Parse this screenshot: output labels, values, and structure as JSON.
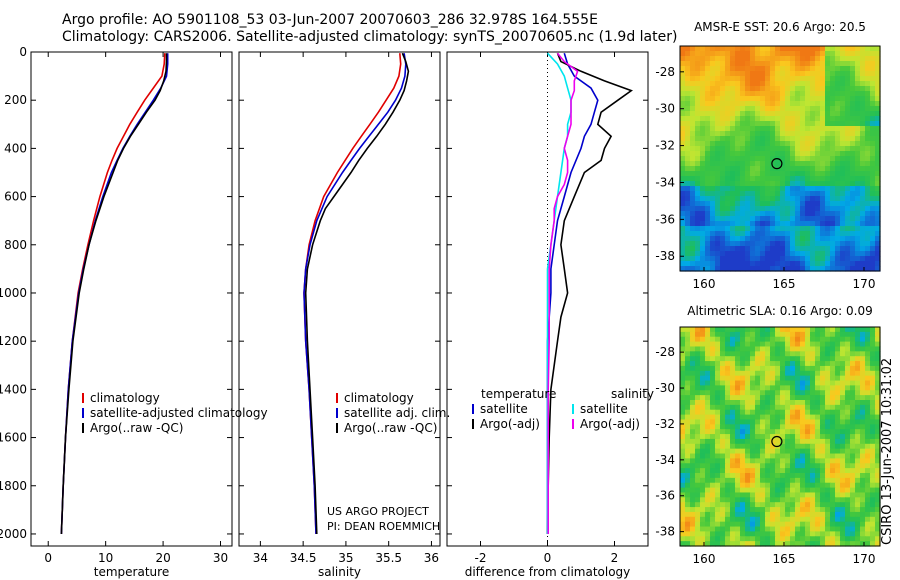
{
  "header": {
    "line1": "Argo profile: AO 5901108_53 03-Jun-2007 20070603_286 32.978S 164.555E",
    "line2": "Climatology: CARS2006. Satellite-adjusted climatology: synTS_20070605.nc (1.9d later)"
  },
  "footer_credit": {
    "line1": "US ARGO PROJECT",
    "line2": "PI: DEAN ROEMMICH"
  },
  "side_label": "CSIRO 13-Jun-2007 10:31:02",
  "colors": {
    "climatology": "#e00000",
    "satellite": "#0000cc",
    "argo": "#000000",
    "temp_diff": "#00e5ee",
    "sal_diff": "#ee00ee"
  },
  "chart_data": [
    {
      "type": "line",
      "id": "temperature",
      "xlabel": "temperature",
      "ylabel": "",
      "xlim": [
        -3,
        32
      ],
      "ylim": [
        2050,
        0
      ],
      "xticks": [
        0,
        10,
        20,
        30
      ],
      "yticks": [
        0,
        200,
        400,
        600,
        800,
        1000,
        1200,
        1400,
        1600,
        1800,
        2000
      ],
      "legend": {
        "position": "lower-right",
        "entries": [
          "climatology",
          "satellite-adjusted climatology",
          "Argo(..raw -QC)"
        ]
      },
      "series": [
        {
          "name": "climatology",
          "depth": [
            5,
            50,
            100,
            150,
            200,
            250,
            300,
            350,
            400,
            450,
            500,
            600,
            700,
            800,
            900,
            1000,
            1200,
            1400,
            1600,
            1800,
            2000
          ],
          "values": [
            20.3,
            20.2,
            19.8,
            18.3,
            16.8,
            15.5,
            14.2,
            13.1,
            12.0,
            11.1,
            10.3,
            9.0,
            7.9,
            6.9,
            6.0,
            5.2,
            4.2,
            3.5,
            3.0,
            2.6,
            2.3
          ]
        },
        {
          "name": "satellite-adjusted climatology",
          "depth": [
            5,
            50,
            100,
            150,
            200,
            250,
            300,
            350,
            400,
            450,
            500,
            600,
            700,
            800,
            900,
            1000,
            1200,
            1400,
            1600,
            1800,
            2000
          ],
          "values": [
            20.8,
            20.8,
            20.6,
            19.6,
            18.3,
            16.9,
            15.5,
            14.2,
            13.0,
            12.0,
            11.0,
            9.5,
            8.2,
            7.1,
            6.1,
            5.3,
            4.2,
            3.5,
            3.0,
            2.6,
            2.3
          ]
        },
        {
          "name": "Argo(..raw -QC)",
          "depth": [
            5,
            40,
            80,
            120,
            160,
            200,
            250,
            300,
            350,
            400,
            450,
            500,
            600,
            700,
            800,
            900,
            1000,
            1200,
            1400,
            1600,
            1800,
            2000
          ],
          "values": [
            20.6,
            20.6,
            20.5,
            20.1,
            19.5,
            18.6,
            17.1,
            15.7,
            14.3,
            13.1,
            12.1,
            11.3,
            9.7,
            8.3,
            7.1,
            6.2,
            5.4,
            4.3,
            3.6,
            3.0,
            2.6,
            2.3
          ]
        }
      ]
    },
    {
      "type": "line",
      "id": "salinity",
      "xlabel": "salinity",
      "ylabel": "",
      "xlim": [
        33.75,
        36.1
      ],
      "ylim": [
        2050,
        0
      ],
      "xticks": [
        34,
        34.5,
        35,
        35.5,
        36
      ],
      "legend": {
        "position": "lower-right",
        "entries": [
          "climatology",
          "satellite adj. clim.",
          "Argo(..raw -QC)"
        ]
      },
      "series": [
        {
          "name": "climatology",
          "depth": [
            5,
            50,
            100,
            150,
            200,
            250,
            300,
            350,
            400,
            450,
            500,
            600,
            700,
            800,
            900,
            1000,
            1200,
            1400,
            1600,
            1800,
            2000
          ],
          "values": [
            35.63,
            35.64,
            35.62,
            35.56,
            35.47,
            35.38,
            35.28,
            35.18,
            35.08,
            34.99,
            34.9,
            34.74,
            34.64,
            34.57,
            34.53,
            34.51,
            34.53,
            34.57,
            34.6,
            34.63,
            34.65
          ]
        },
        {
          "name": "satellite adj. clim.",
          "depth": [
            5,
            50,
            100,
            150,
            200,
            250,
            300,
            350,
            400,
            450,
            500,
            600,
            700,
            800,
            900,
            1000,
            1200,
            1400,
            1600,
            1800,
            2000
          ],
          "values": [
            35.68,
            35.7,
            35.69,
            35.65,
            35.58,
            35.49,
            35.38,
            35.27,
            35.16,
            35.06,
            34.96,
            34.78,
            34.66,
            34.58,
            34.53,
            34.51,
            34.53,
            34.57,
            34.6,
            34.63,
            34.65
          ]
        },
        {
          "name": "Argo(..raw -QC)",
          "depth": [
            5,
            40,
            80,
            120,
            160,
            200,
            250,
            300,
            350,
            400,
            450,
            500,
            550,
            600,
            650,
            700,
            800,
            900,
            1000,
            1200,
            1400,
            1600,
            1800,
            2000
          ],
          "values": [
            35.66,
            35.7,
            35.73,
            35.71,
            35.68,
            35.63,
            35.55,
            35.46,
            35.36,
            35.25,
            35.15,
            35.06,
            34.96,
            34.86,
            34.76,
            34.7,
            34.61,
            34.55,
            34.53,
            34.55,
            34.58,
            34.61,
            34.64,
            34.66
          ]
        }
      ]
    },
    {
      "type": "line",
      "id": "difference",
      "xlabel": "difference from climatology",
      "ylabel": "",
      "xlim": [
        -3,
        3
      ],
      "ylim": [
        2050,
        0
      ],
      "xticks": [
        -2,
        0,
        2
      ],
      "legend": {
        "position": "lower-right",
        "headers": [
          "temperature",
          "salinity"
        ],
        "entries": [
          "satellite",
          "Argo(-adj)",
          "satellite",
          "Argo(-adj)"
        ]
      },
      "series": [
        {
          "name": "temperature satellite",
          "depth": [
            5,
            50,
            100,
            150,
            200,
            250,
            300,
            350,
            400,
            500,
            600,
            700,
            800,
            900,
            1000,
            1200,
            1400,
            1600,
            1800,
            2000
          ],
          "values": [
            0.5,
            0.6,
            0.8,
            1.3,
            1.5,
            1.4,
            1.3,
            1.1,
            1.0,
            0.7,
            0.5,
            0.3,
            0.2,
            0.1,
            0.1,
            0,
            0,
            0,
            0,
            0
          ]
        },
        {
          "name": "temperature Argo(-adj)",
          "depth": [
            5,
            40,
            80,
            120,
            160,
            200,
            250,
            300,
            350,
            400,
            450,
            500,
            600,
            700,
            800,
            900,
            1000,
            1100,
            1200,
            1400,
            1600,
            1800,
            2000
          ],
          "values": [
            0.3,
            0.4,
            1.0,
            1.7,
            2.5,
            2.1,
            1.6,
            1.5,
            1.9,
            1.7,
            1.6,
            1.1,
            0.8,
            0.5,
            0.4,
            0.5,
            0.6,
            0.4,
            0.3,
            0.1,
            0.05,
            0.02,
            0
          ]
        },
        {
          "name": "salinity satellite",
          "depth": [
            5,
            50,
            100,
            150,
            200,
            250,
            300,
            350,
            400,
            500,
            600,
            700,
            800,
            900,
            1000,
            1200,
            1400,
            1600,
            1800,
            2000
          ],
          "values": [
            0,
            0.3,
            0.5,
            0.6,
            0.7,
            0.7,
            0.6,
            0.6,
            0.5,
            0.4,
            0.3,
            0.2,
            0.1,
            0,
            0,
            0,
            0,
            0,
            0,
            0
          ]
        },
        {
          "name": "salinity Argo(-adj)",
          "depth": [
            5,
            40,
            80,
            120,
            160,
            200,
            250,
            300,
            350,
            400,
            450,
            500,
            550,
            600,
            650,
            700,
            800,
            900,
            1000,
            1200,
            1400,
            1600,
            1800,
            2000
          ],
          "values": [
            0.3,
            0.5,
            0.9,
            0.8,
            0.8,
            0.7,
            0.7,
            0.7,
            0.6,
            0.5,
            0.6,
            0.6,
            0.5,
            0.3,
            0.2,
            0.2,
            0.1,
            0.05,
            0.05,
            0.05,
            0.02,
            0.02,
            0.02,
            0.02
          ]
        }
      ]
    },
    {
      "type": "heatmap",
      "id": "sst_map",
      "title": "AMSR-E SST: 20.6 Argo: 20.5",
      "xlim": [
        158.5,
        171
      ],
      "ylim": [
        -38.8,
        -26.6
      ],
      "xticks": [
        160,
        165,
        170
      ],
      "yticks": [
        -28,
        -30,
        -32,
        -34,
        -36,
        -38
      ],
      "profile_location": {
        "lon": 164.555,
        "lat": -32.978
      }
    },
    {
      "type": "heatmap",
      "id": "sla_map",
      "title": "Altimetric SLA: 0.16 Argo: 0.09",
      "xlim": [
        158.5,
        171
      ],
      "ylim": [
        -38.8,
        -26.6
      ],
      "xticks": [
        160,
        165,
        170
      ],
      "yticks": [
        -28,
        -30,
        -32,
        -34,
        -36,
        -38
      ],
      "profile_location": {
        "lon": 164.555,
        "lat": -32.978
      }
    }
  ]
}
